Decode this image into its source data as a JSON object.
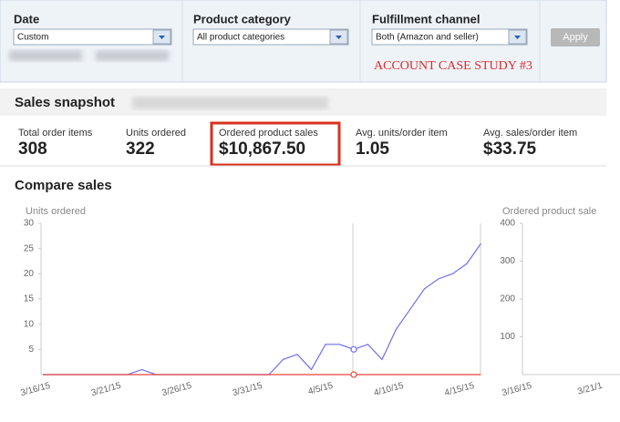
{
  "filters": [
    {
      "label": "Date",
      "value": "Custom"
    },
    {
      "label": "Product category",
      "value": "All product categories"
    },
    {
      "label": "Fulfillment channel",
      "value": "Both (Amazon and seller)"
    }
  ],
  "apply_button": "Apply",
  "annotation": "ACCOUNT CASE STUDY #3",
  "snapshot": {
    "title": "Sales snapshot",
    "metrics": [
      {
        "label": "Total order items",
        "value": "308"
      },
      {
        "label": "Units ordered",
        "value": "322"
      },
      {
        "label": "Ordered product sales",
        "value": "$10,867.50"
      },
      {
        "label": "Avg. units/order item",
        "value": "1.05"
      },
      {
        "label": "Avg. sales/order item",
        "value": "$33.75"
      }
    ]
  },
  "compare_title": "Compare sales",
  "chart_data": [
    {
      "type": "line",
      "title": "Units ordered",
      "categories": [
        "3/16/15",
        null,
        null,
        null,
        null,
        "3/21/15",
        null,
        null,
        null,
        null,
        "3/26/15",
        null,
        null,
        null,
        null,
        "3/31/15",
        null,
        null,
        null,
        null,
        "4/5/15",
        null,
        null,
        null,
        null,
        "4/10/15",
        null,
        null,
        null,
        null,
        "4/15/15",
        null
      ],
      "series": [
        {
          "color": "#6f6ff0",
          "values": [
            0,
            0,
            0,
            0,
            0,
            0,
            0,
            1,
            0,
            0,
            0,
            0,
            0,
            0,
            0,
            0,
            0,
            3,
            4,
            1,
            6,
            6,
            5,
            6,
            3,
            9,
            13,
            17,
            19,
            20,
            22,
            26
          ]
        },
        {
          "color": "#e8453c",
          "values": [
            0,
            0,
            0,
            0,
            0,
            0,
            0,
            0,
            0,
            0,
            0,
            0,
            0,
            0,
            0,
            0,
            0,
            0,
            0,
            0,
            0,
            0,
            0,
            0,
            0,
            0,
            0,
            0,
            0,
            0,
            0,
            0
          ]
        }
      ],
      "ylim": [
        0,
        30
      ],
      "yticks": [
        5,
        10,
        15,
        20,
        25,
        30
      ]
    },
    {
      "type": "line",
      "title": "Ordered product sale",
      "categories": [
        "3/16/15",
        null,
        null,
        null,
        null,
        "3/21/1",
        null,
        null
      ],
      "series": [],
      "ylim": [
        0,
        400
      ],
      "yticks": [
        100,
        200,
        300,
        400
      ]
    }
  ]
}
